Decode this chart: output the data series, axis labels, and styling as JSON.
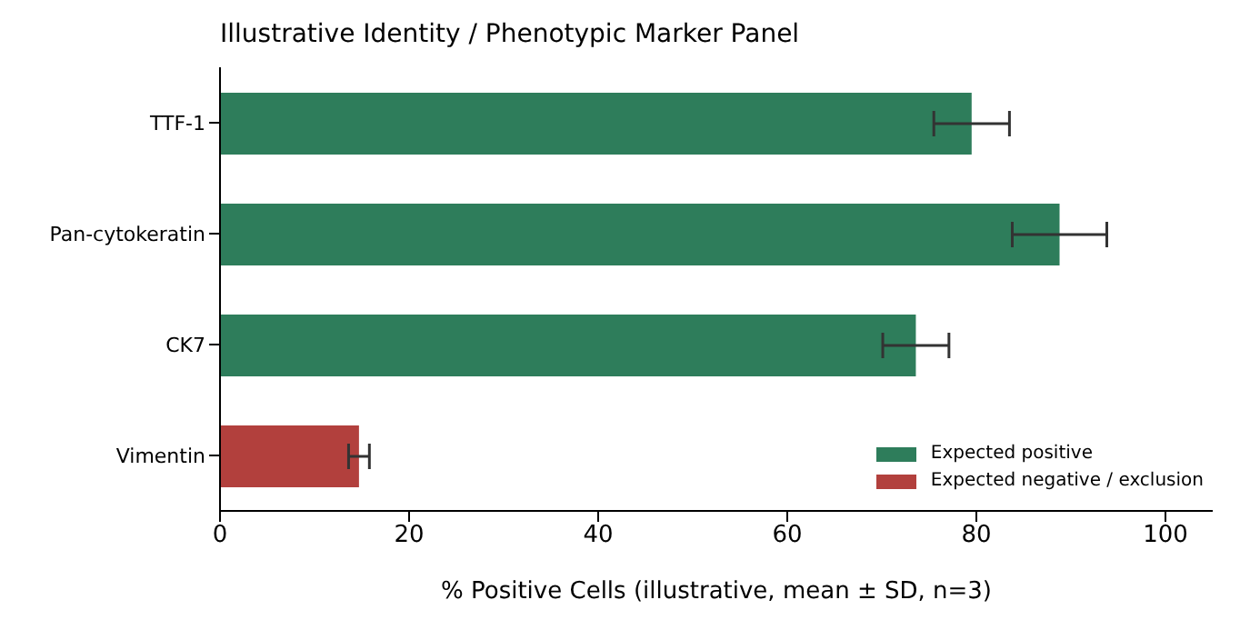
{
  "chart_data": {
    "type": "bar",
    "orientation": "horizontal",
    "stacked": true,
    "title": "Illustrative Identity / Phenotypic Marker Panel",
    "xlabel": "% Positive Cells (illustrative, mean ± SD, n=3)",
    "categories": [
      "TTF-1",
      "Pan-cytokeratin",
      "CK7",
      "Vimentin"
    ],
    "series": [
      {
        "name": "Expected positive",
        "color": "#2e7d5b",
        "values": [
          79.5,
          88.8,
          73.6,
          null
        ],
        "errors": [
          4,
          5,
          3.5,
          null
        ]
      },
      {
        "name": "Expected negative / exclusion",
        "color": "#b2403d",
        "values": [
          null,
          null,
          null,
          14.7
        ],
        "errors": [
          null,
          null,
          null,
          1.1
        ]
      }
    ],
    "xlim": [
      0,
      105
    ],
    "xticks": [
      0,
      20,
      40,
      60,
      80,
      100
    ],
    "grid": false,
    "legend": "bottom right"
  }
}
